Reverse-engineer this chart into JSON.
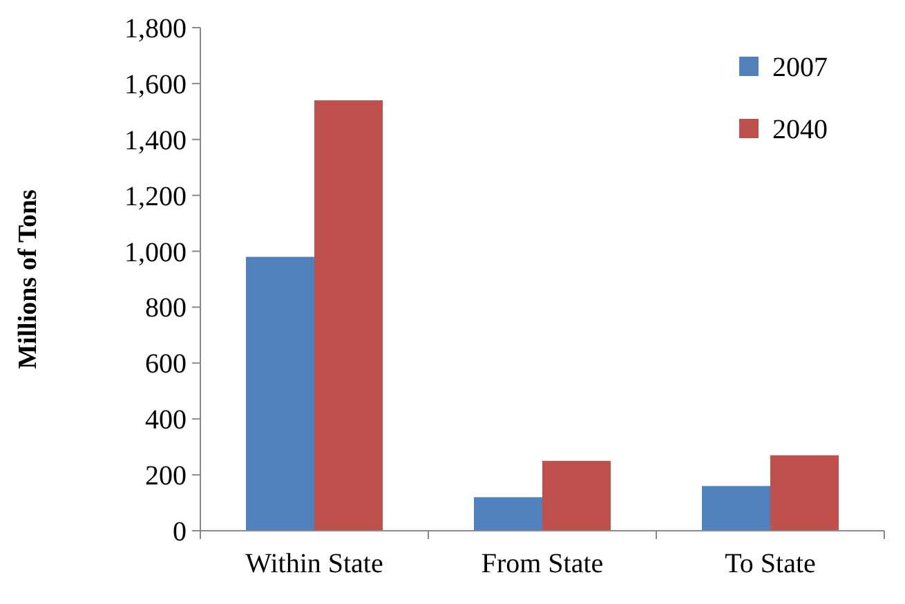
{
  "chart_data": {
    "type": "bar",
    "ylabel": "Millions of Tons",
    "categories": [
      "Within State",
      "From State",
      "To State"
    ],
    "series": [
      {
        "name": "2007",
        "color": "#4f81bd",
        "values": [
          980,
          120,
          160
        ]
      },
      {
        "name": "2040",
        "color": "#c0504d",
        "values": [
          1540,
          250,
          270
        ]
      }
    ],
    "ylim": [
      0,
      1800
    ],
    "yticks": [
      {
        "value": 0,
        "label": "0"
      },
      {
        "value": 200,
        "label": "200"
      },
      {
        "value": 400,
        "label": "400"
      },
      {
        "value": 600,
        "label": "600"
      },
      {
        "value": 800,
        "label": "800"
      },
      {
        "value": 1000,
        "label": "1,000"
      },
      {
        "value": 1200,
        "label": "1,200"
      },
      {
        "value": 1400,
        "label": "1,400"
      },
      {
        "value": 1600,
        "label": "1,600"
      },
      {
        "value": 1800,
        "label": "1,800"
      }
    ],
    "grid": false,
    "legend": "top right"
  }
}
